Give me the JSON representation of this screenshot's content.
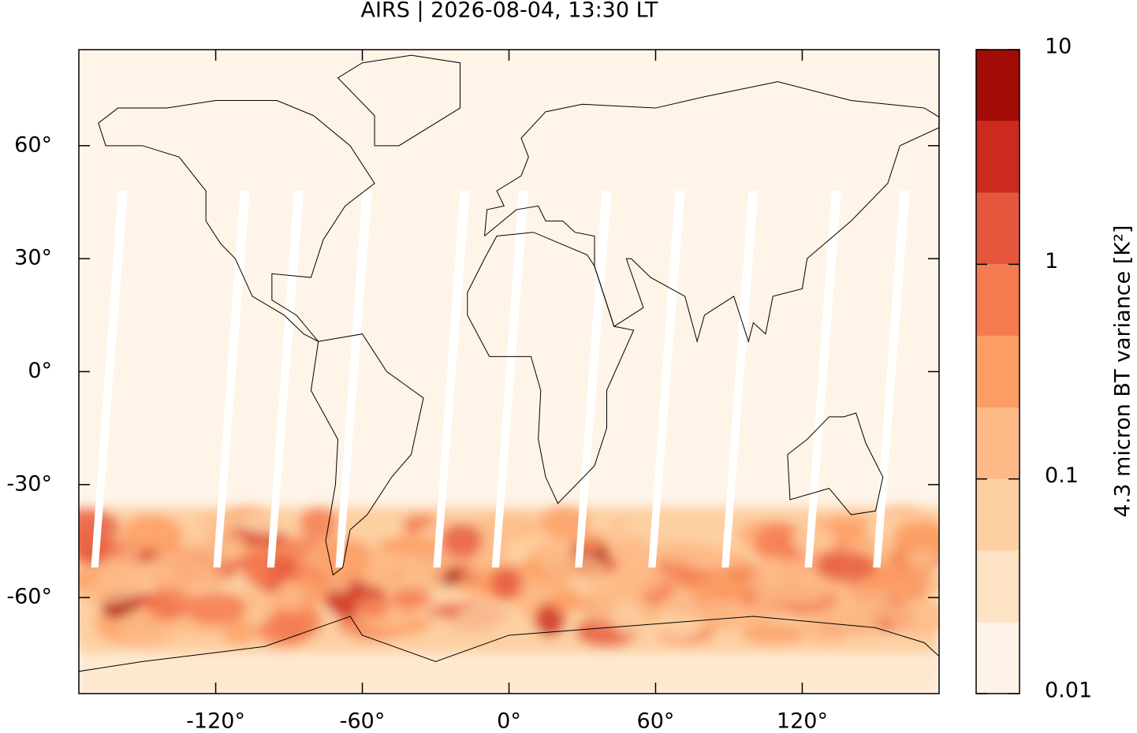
{
  "chart_data": {
    "type": "map",
    "title": "AIRS | 2026-08-04, 13:30 LT",
    "xlim": [
      -176,
      176
    ],
    "ylim": [
      -85.5,
      85.5
    ],
    "xticks": [
      {
        "value": -120,
        "label": "-120°"
      },
      {
        "value": -60,
        "label": "-60°"
      },
      {
        "value": 0,
        "label": "0°"
      },
      {
        "value": 60,
        "label": "60°"
      },
      {
        "value": 120,
        "label": "120°"
      }
    ],
    "yticks": [
      {
        "value": 60,
        "label": "60°"
      },
      {
        "value": 30,
        "label": "30°"
      },
      {
        "value": 0,
        "label": "0°"
      },
      {
        "value": -30,
        "label": "-30°"
      },
      {
        "value": -60,
        "label": "-60°"
      }
    ],
    "colorbar": {
      "label": "4.3 micron BT variance [K²]",
      "log_scale": true,
      "lim": [
        0.01,
        10
      ],
      "ticks": [
        0.01,
        0.1,
        1,
        10
      ],
      "levels": [
        0.01,
        0.0215,
        0.0464,
        0.1,
        0.215,
        0.464,
        1,
        2.15,
        4.64,
        10
      ],
      "colors": [
        "#fdf3e6",
        "#fde2c3",
        "#fdd0a2",
        "#fdba87",
        "#fc9d64",
        "#f47b50",
        "#e5573d",
        "#cc2a1e",
        "#a20c06"
      ]
    }
  }
}
